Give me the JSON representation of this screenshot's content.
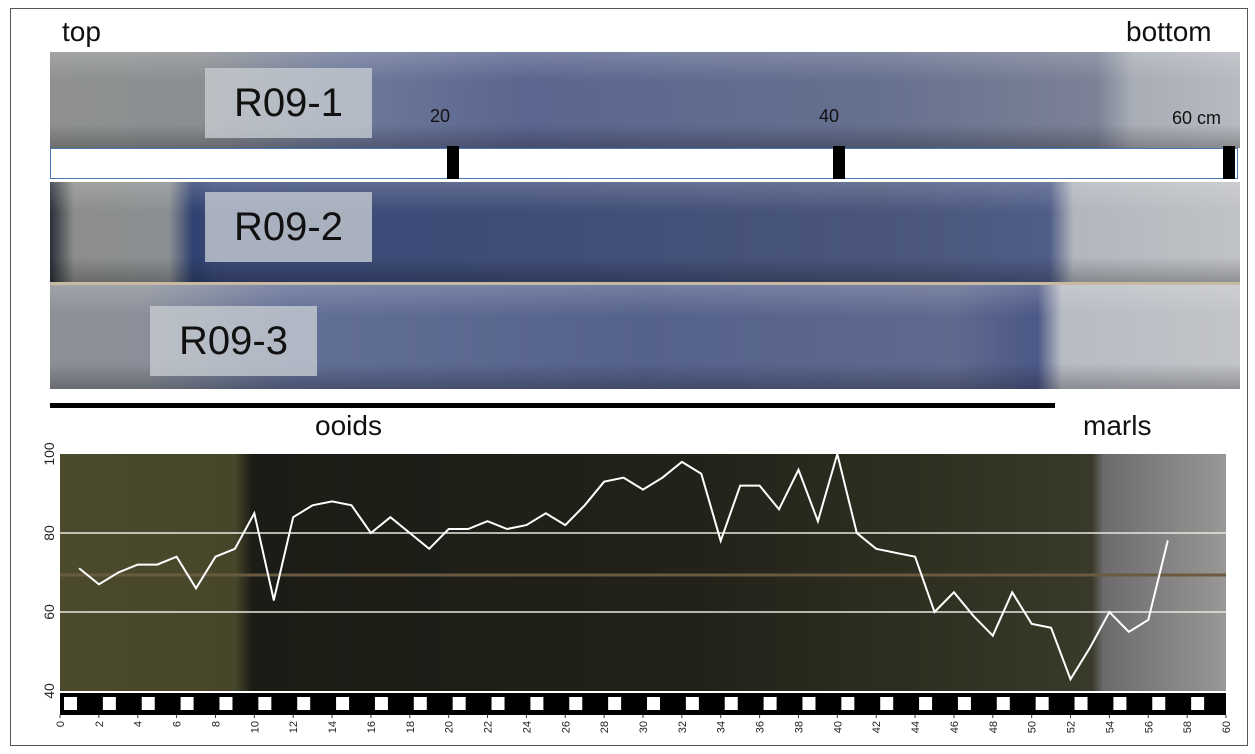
{
  "labels": {
    "top": "top",
    "bottom": "bottom",
    "ooids": "ooids",
    "marls": "marls",
    "core1": "R09-1",
    "core2": "R09-2",
    "core3": "R09-3",
    "scale_20": "20",
    "scale_40": "40",
    "scale_60": "60 cm"
  },
  "colors": {
    "line": "#ffffff",
    "gridline": "#e8e8e0",
    "ooid_zone": "#2a2a1e",
    "marl_zone": "#9a9896"
  },
  "chart_data": {
    "type": "line",
    "title": "",
    "xlabel": "",
    "ylabel": "",
    "xlim": [
      0,
      60
    ],
    "ylim": [
      40,
      100
    ],
    "x_ticks": [
      "0",
      "2",
      "4",
      "6",
      "8",
      "10",
      "12",
      "14",
      "16",
      "18",
      "20",
      "22",
      "24",
      "26",
      "28",
      "30",
      "32",
      "34",
      "36",
      "38",
      "40",
      "42",
      "44",
      "46",
      "48",
      "50",
      "52",
      "54",
      "56",
      "58",
      "60"
    ],
    "y_ticks": [
      "40",
      "60",
      "80",
      "100"
    ],
    "hlines": [
      60,
      80
    ],
    "series": [
      {
        "x": [
          1,
          2,
          3,
          4,
          5,
          6,
          7,
          8,
          9,
          10,
          11,
          12,
          13,
          14,
          15,
          16,
          17,
          18,
          19,
          20,
          21,
          22,
          23,
          24,
          25,
          26,
          27,
          28,
          29,
          30,
          31,
          32,
          33,
          34,
          35,
          36,
          37,
          38,
          39,
          40,
          41,
          42,
          43,
          44,
          45,
          46,
          47,
          48,
          49,
          50,
          51,
          52,
          53,
          54,
          55,
          56,
          57
        ],
        "y": [
          71,
          67,
          70,
          72,
          72,
          74,
          66,
          74,
          76,
          85,
          63,
          84,
          87,
          88,
          87,
          80,
          84,
          80,
          76,
          81,
          81,
          83,
          81,
          82,
          85,
          82,
          87,
          93,
          94,
          91,
          94,
          98,
          95,
          78,
          92,
          92,
          86,
          96,
          83,
          100,
          80,
          76,
          75,
          74,
          60,
          65,
          59,
          54,
          65,
          57,
          56,
          43,
          51,
          60,
          55,
          58,
          78
        ]
      }
    ]
  }
}
